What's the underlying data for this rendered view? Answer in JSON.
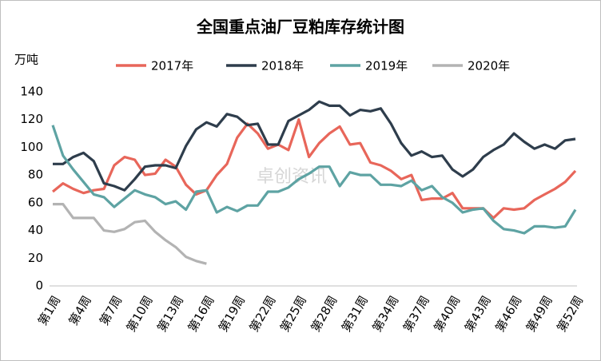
{
  "chart_data": {
    "type": "line",
    "title": "全国重点油厂豆粕库存统计图",
    "y_label": "万吨",
    "watermark": "卓创资讯",
    "categories": [
      "第1周",
      null,
      null,
      "第4周",
      null,
      null,
      "第7周",
      null,
      null,
      "第10周",
      null,
      null,
      "第13周",
      null,
      null,
      "第16周",
      null,
      null,
      "第19周",
      null,
      null,
      "第22周",
      null,
      null,
      "第25周",
      null,
      null,
      "第28周",
      null,
      null,
      "第31周",
      null,
      null,
      "第34周",
      null,
      null,
      "第37周",
      null,
      null,
      "第40周",
      null,
      null,
      "第43周",
      null,
      null,
      "第46周",
      null,
      null,
      "第49周",
      null,
      null,
      "第52周"
    ],
    "series": [
      {
        "name": "2017年",
        "color": "#e8665a",
        "values": [
          68,
          74,
          70,
          67,
          69,
          70,
          87,
          93,
          91,
          80,
          81,
          91,
          86,
          73,
          66,
          69,
          80,
          88,
          107,
          117,
          110,
          99,
          102,
          98,
          120,
          93,
          103,
          110,
          115,
          102,
          103,
          89,
          87,
          83,
          77,
          80,
          62,
          63,
          63,
          67,
          56,
          56,
          56,
          49,
          56,
          55,
          56,
          62,
          66,
          70,
          75,
          83
        ]
      },
      {
        "name": "2018年",
        "color": "#2e3d4c",
        "values": [
          88,
          88,
          93,
          96,
          90,
          74,
          72,
          69,
          77,
          86,
          87,
          87,
          85,
          101,
          113,
          118,
          115,
          124,
          122,
          116,
          117,
          102,
          102,
          119,
          123,
          127,
          133,
          130,
          130,
          123,
          127,
          126,
          128,
          117,
          103,
          94,
          97,
          93,
          94,
          84,
          79,
          84,
          93,
          98,
          102,
          110,
          104,
          99,
          102,
          99,
          105,
          106
        ]
      },
      {
        "name": "2019年",
        "color": "#5ea3a3",
        "values": [
          116,
          94,
          84,
          75,
          66,
          64,
          57,
          63,
          69,
          66,
          64,
          59,
          61,
          55,
          68,
          69,
          53,
          57,
          54,
          58,
          58,
          68,
          68,
          71,
          77,
          81,
          86,
          86,
          72,
          82,
          80,
          80,
          73,
          73,
          72,
          76,
          69,
          72,
          64,
          60,
          53,
          55,
          56,
          47,
          41,
          40,
          38,
          43,
          43,
          42,
          43,
          55
        ]
      },
      {
        "name": "2020年",
        "color": "#b3b3b3",
        "values": [
          59,
          59,
          49,
          49,
          49,
          40,
          39,
          41,
          46,
          47,
          39,
          33,
          28,
          21,
          18,
          16,
          null,
          null,
          null,
          null,
          null,
          null,
          null,
          null,
          null,
          null,
          null,
          null,
          null,
          null,
          null,
          null,
          null,
          null,
          null,
          null,
          null,
          null,
          null,
          null,
          null,
          null,
          null,
          null,
          null,
          null,
          null,
          null,
          null,
          null,
          null,
          null
        ]
      }
    ],
    "ylim": [
      0,
      140
    ],
    "yticks": [
      0,
      20,
      40,
      60,
      80,
      100,
      120,
      140
    ],
    "grid": false
  }
}
